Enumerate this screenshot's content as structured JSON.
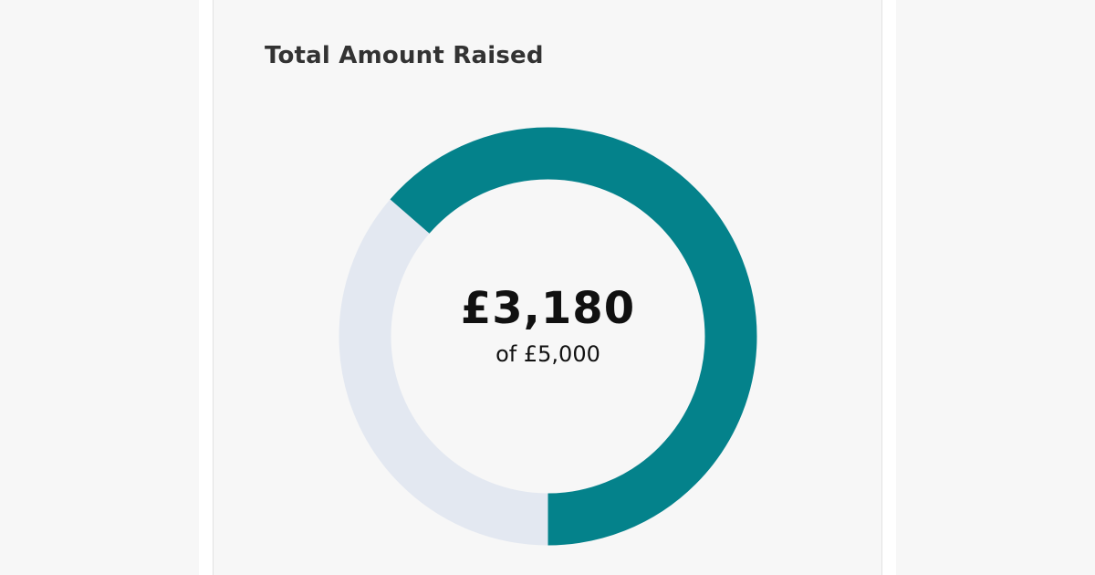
{
  "card": {
    "title": "Total Amount Raised"
  },
  "progress": {
    "raised_text": "£3,180",
    "target_text": "of £5,000",
    "raised_value": 3180,
    "target_value": 5000,
    "fraction": 0.636
  },
  "colors": {
    "progress": "#04828b",
    "remaining": "#e3e8f1",
    "background": "#f7f7f7"
  }
}
